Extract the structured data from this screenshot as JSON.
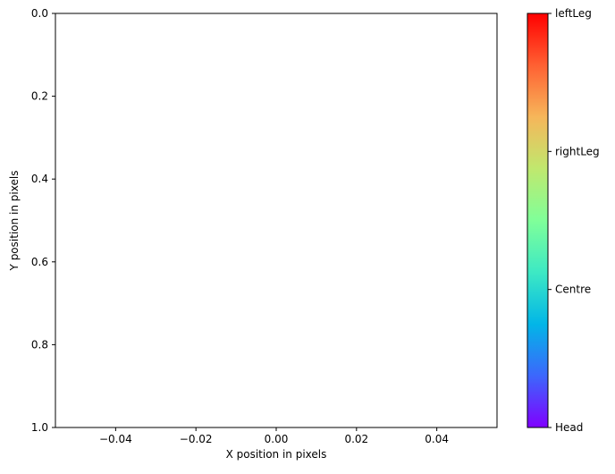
{
  "chart_data": {
    "type": "scatter",
    "title": "",
    "xlabel": "X position in pixels",
    "ylabel": "Y position in pixels",
    "xlim": [
      -0.055,
      0.055
    ],
    "ylim": [
      1.0,
      0.0
    ],
    "y_inverted": true,
    "x_ticks": [
      -0.04,
      -0.02,
      0.0,
      0.02,
      0.04
    ],
    "x_tick_labels": [
      "−0.04",
      "−0.02",
      "0.00",
      "0.02",
      "0.04"
    ],
    "y_ticks": [
      0.0,
      0.2,
      0.4,
      0.6,
      0.8,
      1.0
    ],
    "y_tick_labels": [
      "0.0",
      "0.2",
      "0.4",
      "0.6",
      "0.8",
      "1.0"
    ],
    "grid": false,
    "points": [],
    "colorbar": {
      "colormap": "rainbow",
      "range": [
        0,
        3
      ],
      "ticks": [
        0,
        1,
        2,
        3
      ],
      "tick_labels": [
        "Head",
        "Centre",
        "rightLeg",
        "leftLeg"
      ],
      "placement": "right"
    }
  },
  "colors": {
    "axes": "#000000",
    "background": "#ffffff",
    "colormap_stops": [
      "#8000ff",
      "#3c67fc",
      "#02b6e7",
      "#3de9c4",
      "#80ff99",
      "#c0e86e",
      "#f6b65a",
      "#ff6032",
      "#ff0000"
    ]
  }
}
